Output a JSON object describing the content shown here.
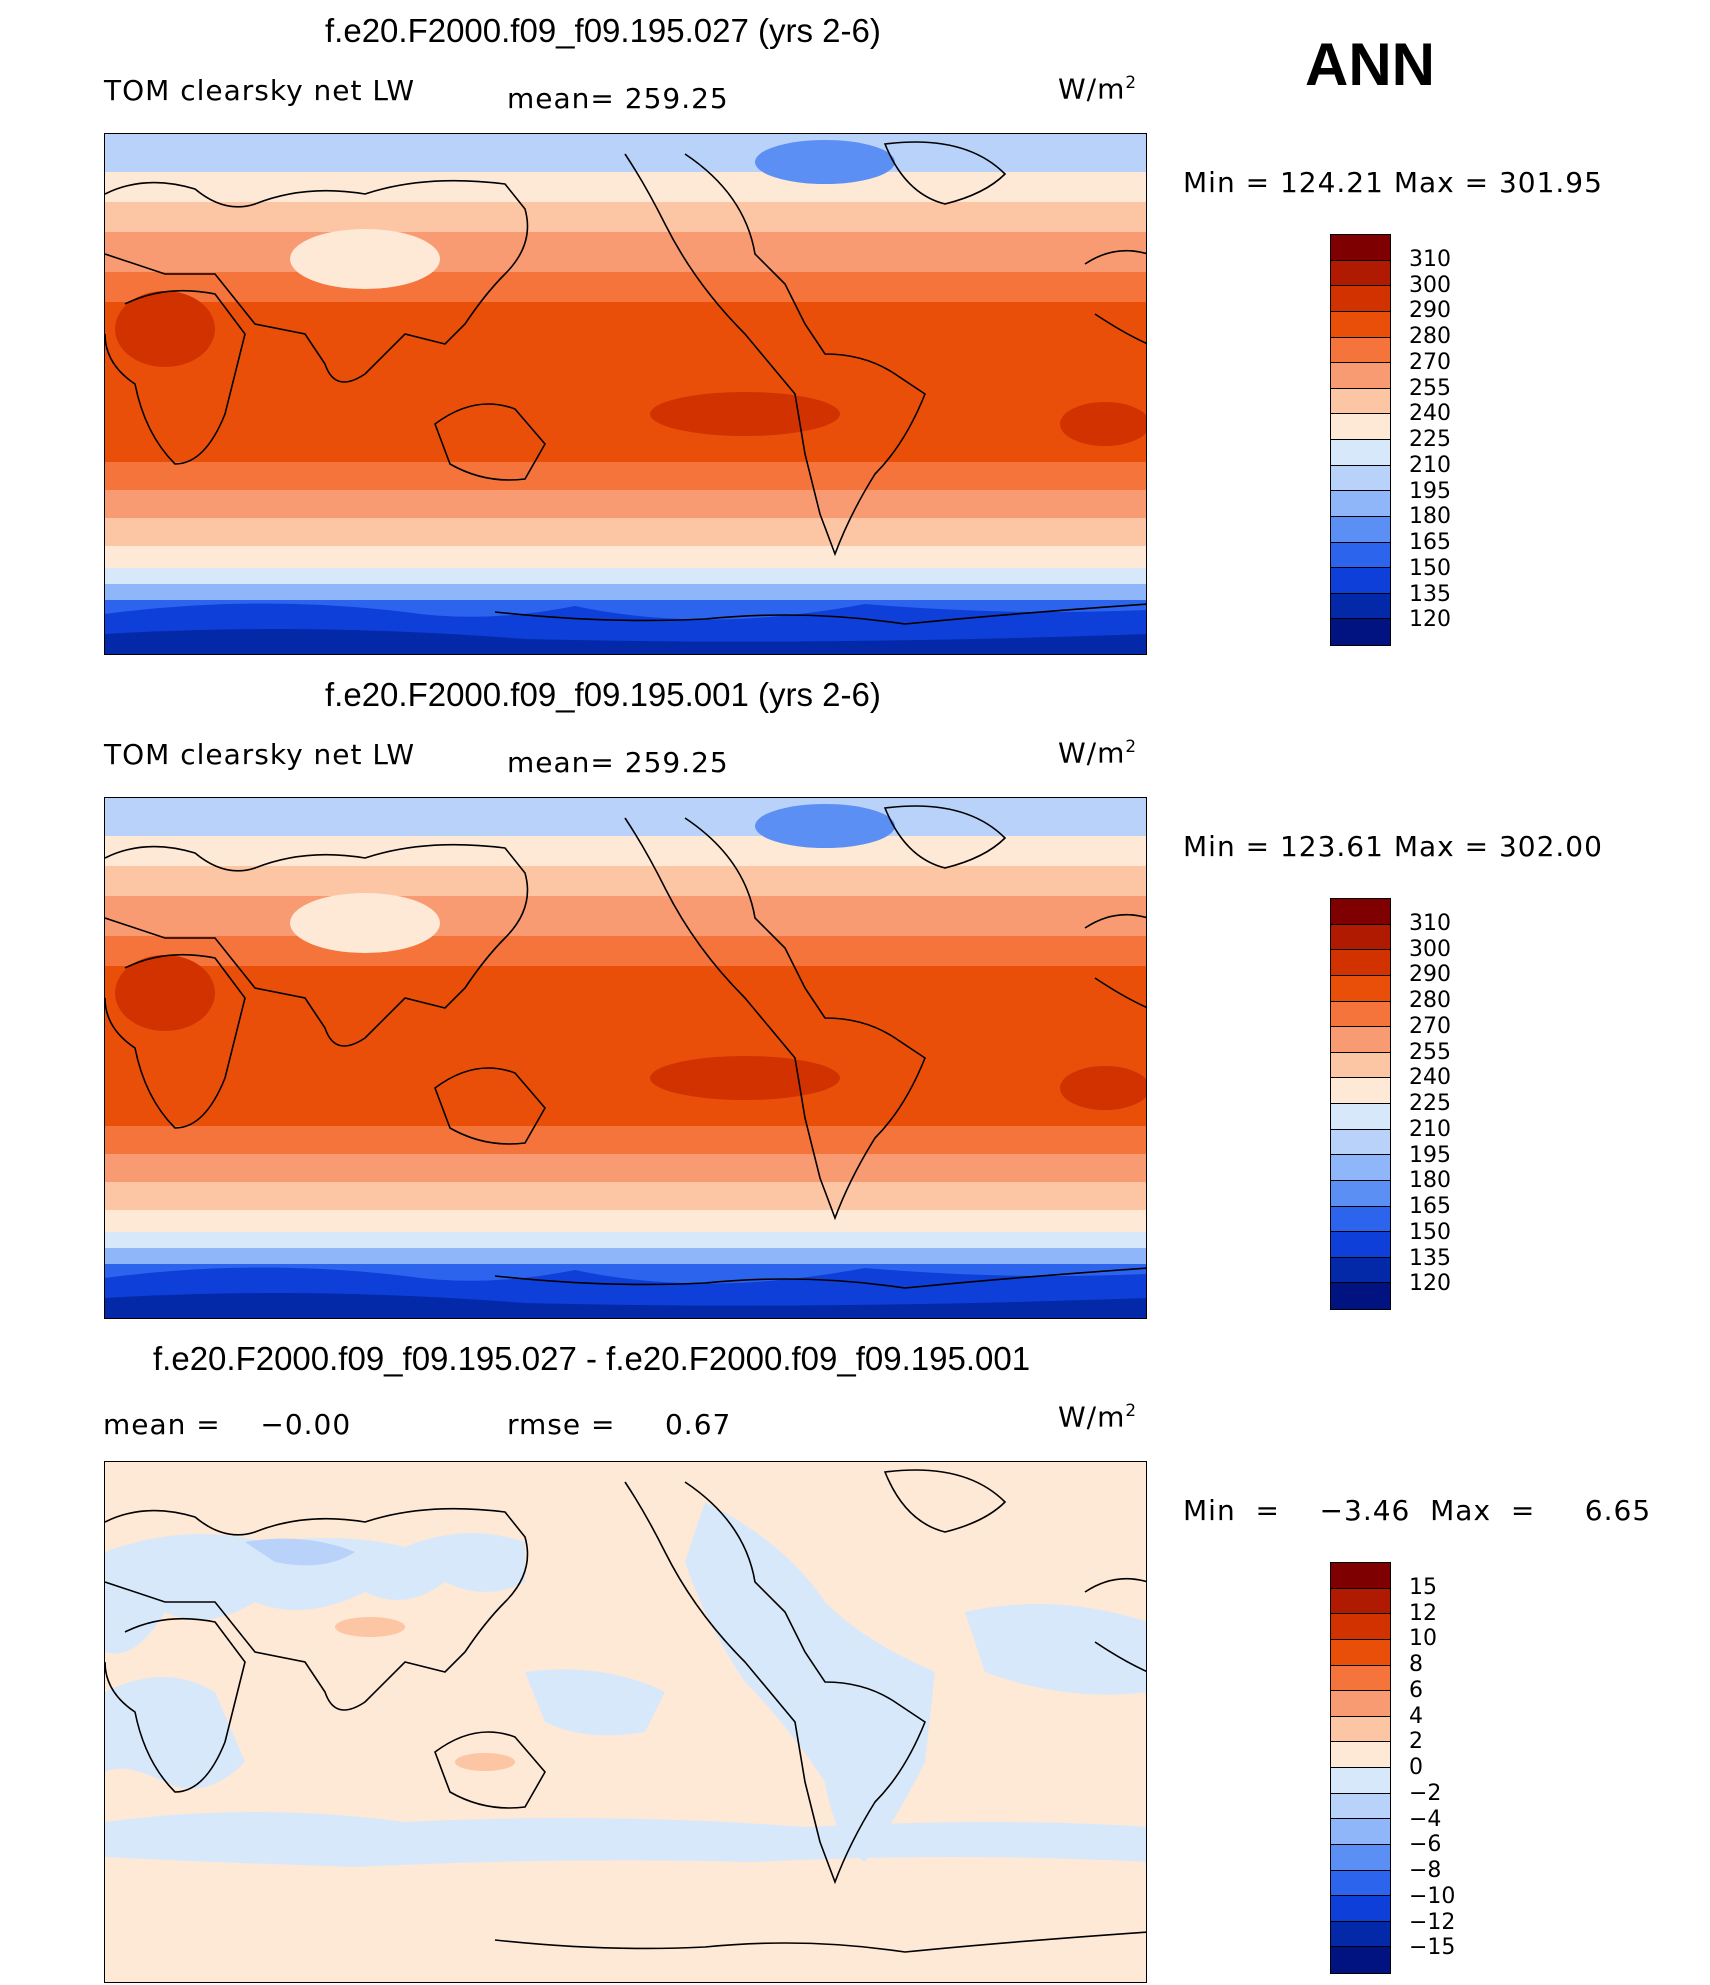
{
  "page_label": "ANN",
  "panels": [
    {
      "title": "f.e20.F2000.f09_f09.195.027 (yrs 2-6)",
      "left_label": "TOM clearsky net LW",
      "mid_label": "mean= 259.25",
      "units": "W/m",
      "units_sup": "2",
      "minmax": "Min  =  124.21  Max  =  301.95",
      "type": "abs"
    },
    {
      "title": "f.e20.F2000.f09_f09.195.001 (yrs 2-6)",
      "left_label": "TOM clearsky net LW",
      "mid_label": "mean= 259.25",
      "units": "W/m",
      "units_sup": "2",
      "minmax": "Min  =  123.61  Max  =  302.00",
      "type": "abs"
    },
    {
      "title": "f.e20.F2000.f09_f09.195.027 - f.e20.F2000.f09_f09.195.001",
      "left_label": "mean =    −0.00",
      "mid_label": "rmse =     0.67",
      "units": "W/m",
      "units_sup": "2",
      "minmax": "Min  =    −3.46  Max  =     6.65",
      "type": "diff"
    }
  ],
  "colorbars": {
    "abs": {
      "labels": [
        "310",
        "300",
        "290",
        "280",
        "270",
        "255",
        "240",
        "225",
        "210",
        "195",
        "180",
        "165",
        "150",
        "135",
        "120"
      ],
      "colors": [
        "#7e0000",
        "#b01a00",
        "#d23200",
        "#ea4f0a",
        "#f4743c",
        "#f99b72",
        "#fcc6a4",
        "#fee8d6",
        "#d8e8fb",
        "#b8d2fa",
        "#8eb6f8",
        "#5c8ff4",
        "#2d64ee",
        "#0e3fd8",
        "#0329a8",
        "#001380"
      ]
    },
    "diff": {
      "labels": [
        "15",
        "12",
        "10",
        "8",
        "6",
        "4",
        "2",
        "0",
        "−2",
        "−4",
        "−6",
        "−8",
        "−10",
        "−12",
        "−15"
      ],
      "colors": [
        "#7e0000",
        "#b01a00",
        "#d23200",
        "#ea4f0a",
        "#f4743c",
        "#f99b72",
        "#fcc6a4",
        "#fee8d6",
        "#d8e8fb",
        "#b8d2fa",
        "#8eb6f8",
        "#5c8ff4",
        "#2d64ee",
        "#0e3fd8",
        "#0329a8",
        "#001380"
      ]
    }
  }
}
